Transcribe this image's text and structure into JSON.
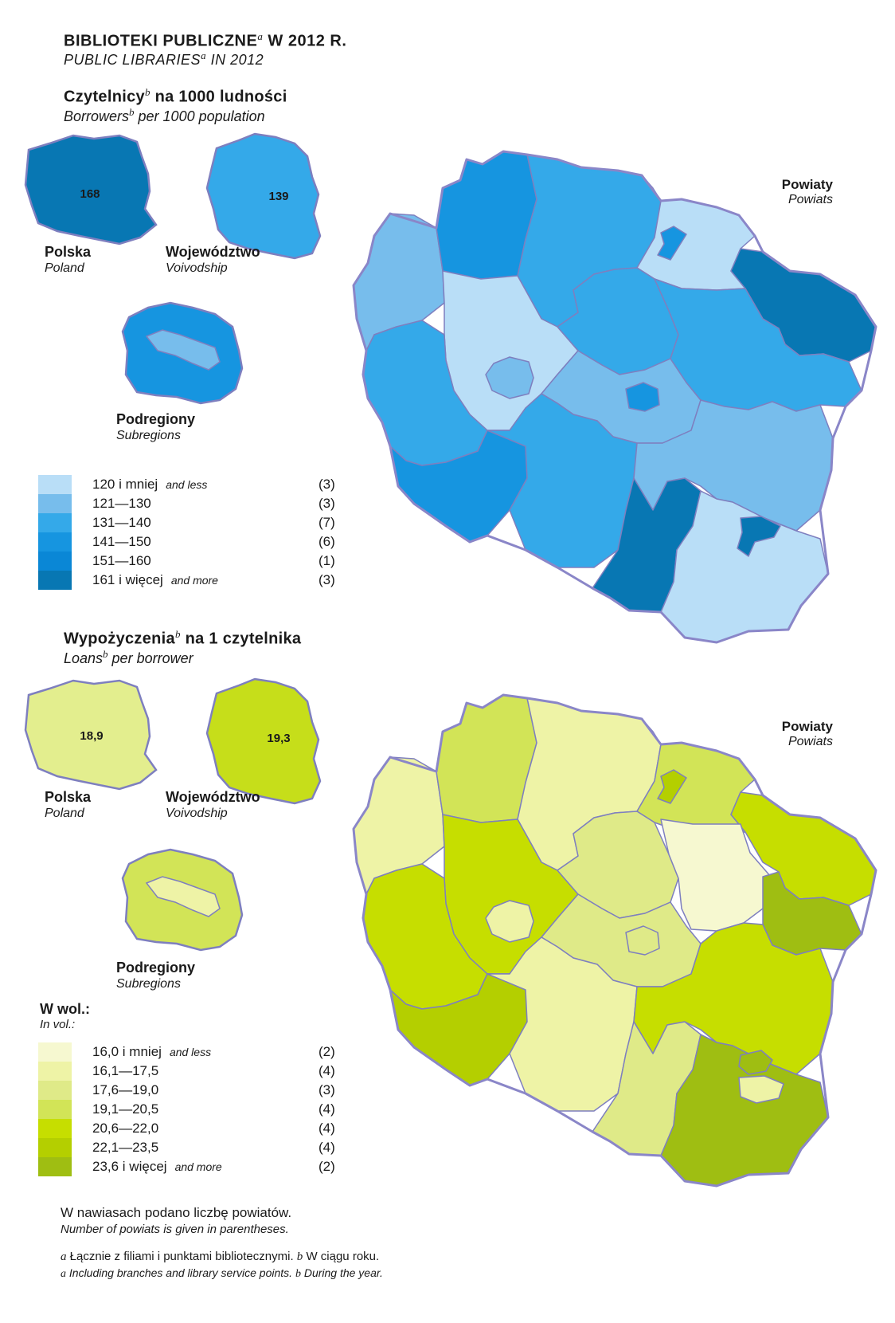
{
  "title": {
    "pl": "BIBLIOTEKI  PUBLICZNE",
    "pl_mark": "a",
    "pl_tail": " W  2012 R.",
    "en": "PUBLIC  LIBRARIES",
    "en_mark": "a",
    "en_tail": " IN  2012"
  },
  "section1": {
    "title_pl": "Czytelnicy",
    "title_pl_mark": "b",
    "title_pl_tail": " na  1000  ludności",
    "title_en": "Borrowers",
    "title_en_mark": "b",
    "title_en_tail": " per  1000  population",
    "poland_value": "168",
    "voivodship_value": "139",
    "colors": [
      "#b9def7",
      "#77bdec",
      "#34a9e9",
      "#1695e0",
      "#0a87d6",
      "#0877b3"
    ],
    "legend": [
      {
        "range": "120 i mniej",
        "en": "and less",
        "count": "(3)"
      },
      {
        "range": "121—130",
        "en": "",
        "count": "(3)"
      },
      {
        "range": "131—140",
        "en": "",
        "count": "(7)"
      },
      {
        "range": "141—150",
        "en": "",
        "count": "(6)"
      },
      {
        "range": "151—160",
        "en": "",
        "count": "(1)"
      },
      {
        "range": "161 i więcej",
        "en": "and more",
        "count": "(3)"
      }
    ]
  },
  "section2": {
    "title_pl": "Wypożyczenia",
    "title_pl_mark": "b",
    "title_pl_tail": " na  1  czytelnika",
    "title_en": "Loans",
    "title_en_mark": "b",
    "title_en_tail": " per  borrower",
    "poland_value": "18,9",
    "voivodship_value": "19,3",
    "unit_pl": "W wol.:",
    "unit_en": "In vol.:",
    "colors": [
      "#f6f8d0",
      "#eef3a6",
      "#dfea88",
      "#d2e457",
      "#c6de00",
      "#b4cf00",
      "#9fbe12"
    ],
    "legend": [
      {
        "range": "16,0 i mniej",
        "en": "and less",
        "count": "(2)"
      },
      {
        "range": "16,1—17,5",
        "en": "",
        "count": "(4)"
      },
      {
        "range": "17,6—19,0",
        "en": "",
        "count": "(3)"
      },
      {
        "range": "19,1—20,5",
        "en": "",
        "count": "(4)"
      },
      {
        "range": "20,6—22,0",
        "en": "",
        "count": "(4)"
      },
      {
        "range": "22,1—23,5",
        "en": "",
        "count": "(4)"
      },
      {
        "range": "23,6 i więcej",
        "en": "and more",
        "count": "(2)"
      }
    ]
  },
  "labels": {
    "poland_pl": "Polska",
    "poland_en": "Poland",
    "voivodship_pl": "Województwo",
    "voivodship_en": "Voivodship",
    "subregions_pl": "Podregiony",
    "subregions_en": "Subregions",
    "powiaty_pl": "Powiaty",
    "powiaty_en": "Powiats"
  },
  "footer": {
    "note_pl": "W nawiasach podano liczbę powiatów.",
    "note_en": "Number of powiats is given in parentheses.",
    "fn_a": "a",
    "fn_a_pl": "Łącznie z filiami i punktami bibliotecznymi.",
    "fn_b": "b",
    "fn_b_pl": "W ciągu roku.",
    "fn_a_en": "Including branches and library service points.",
    "fn_b_en": "During the year."
  }
}
